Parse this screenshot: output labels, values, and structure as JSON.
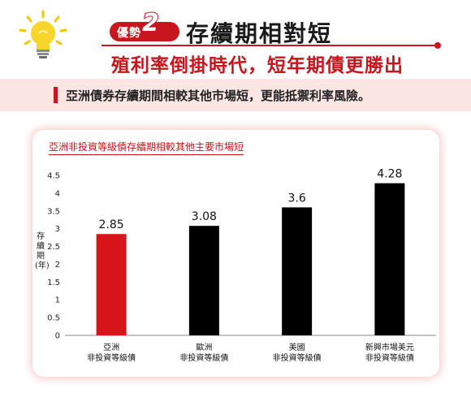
{
  "header": {
    "badge_label": "優勢",
    "badge_number": "2",
    "title": "存續期相對短",
    "subtitle": "殖利率倒掛時代，短年期債更勝出",
    "bulb_icon": "lightbulb-icon",
    "accent_color": "#c7161d"
  },
  "highlight": {
    "text": "亞洲債券存續期間相較其他市場短，更能抵禦利率風險。"
  },
  "chart_data": {
    "type": "bar",
    "title": "亞洲非投資等級債存續期相較其他主要市場短",
    "ylabel": "存續期(年)",
    "xlabel": "",
    "categories": [
      [
        "亞洲",
        "非投資等級債"
      ],
      [
        "歐洲",
        "非投資等級債"
      ],
      [
        "美國",
        "非投資等級債"
      ],
      [
        "新興市場美元",
        "非投資等級債"
      ]
    ],
    "values": [
      2.85,
      3.08,
      3.6,
      4.28
    ],
    "value_labels": [
      "2.85",
      "3.08",
      "3.6",
      "4.28"
    ],
    "bar_colors": [
      "#d7141a",
      "#000000",
      "#000000",
      "#000000"
    ],
    "ylim": [
      0,
      4.5
    ],
    "yticks": [
      0,
      0.5,
      1,
      1.5,
      2,
      2.5,
      3,
      3.5,
      4,
      4.5
    ],
    "grid": false
  }
}
